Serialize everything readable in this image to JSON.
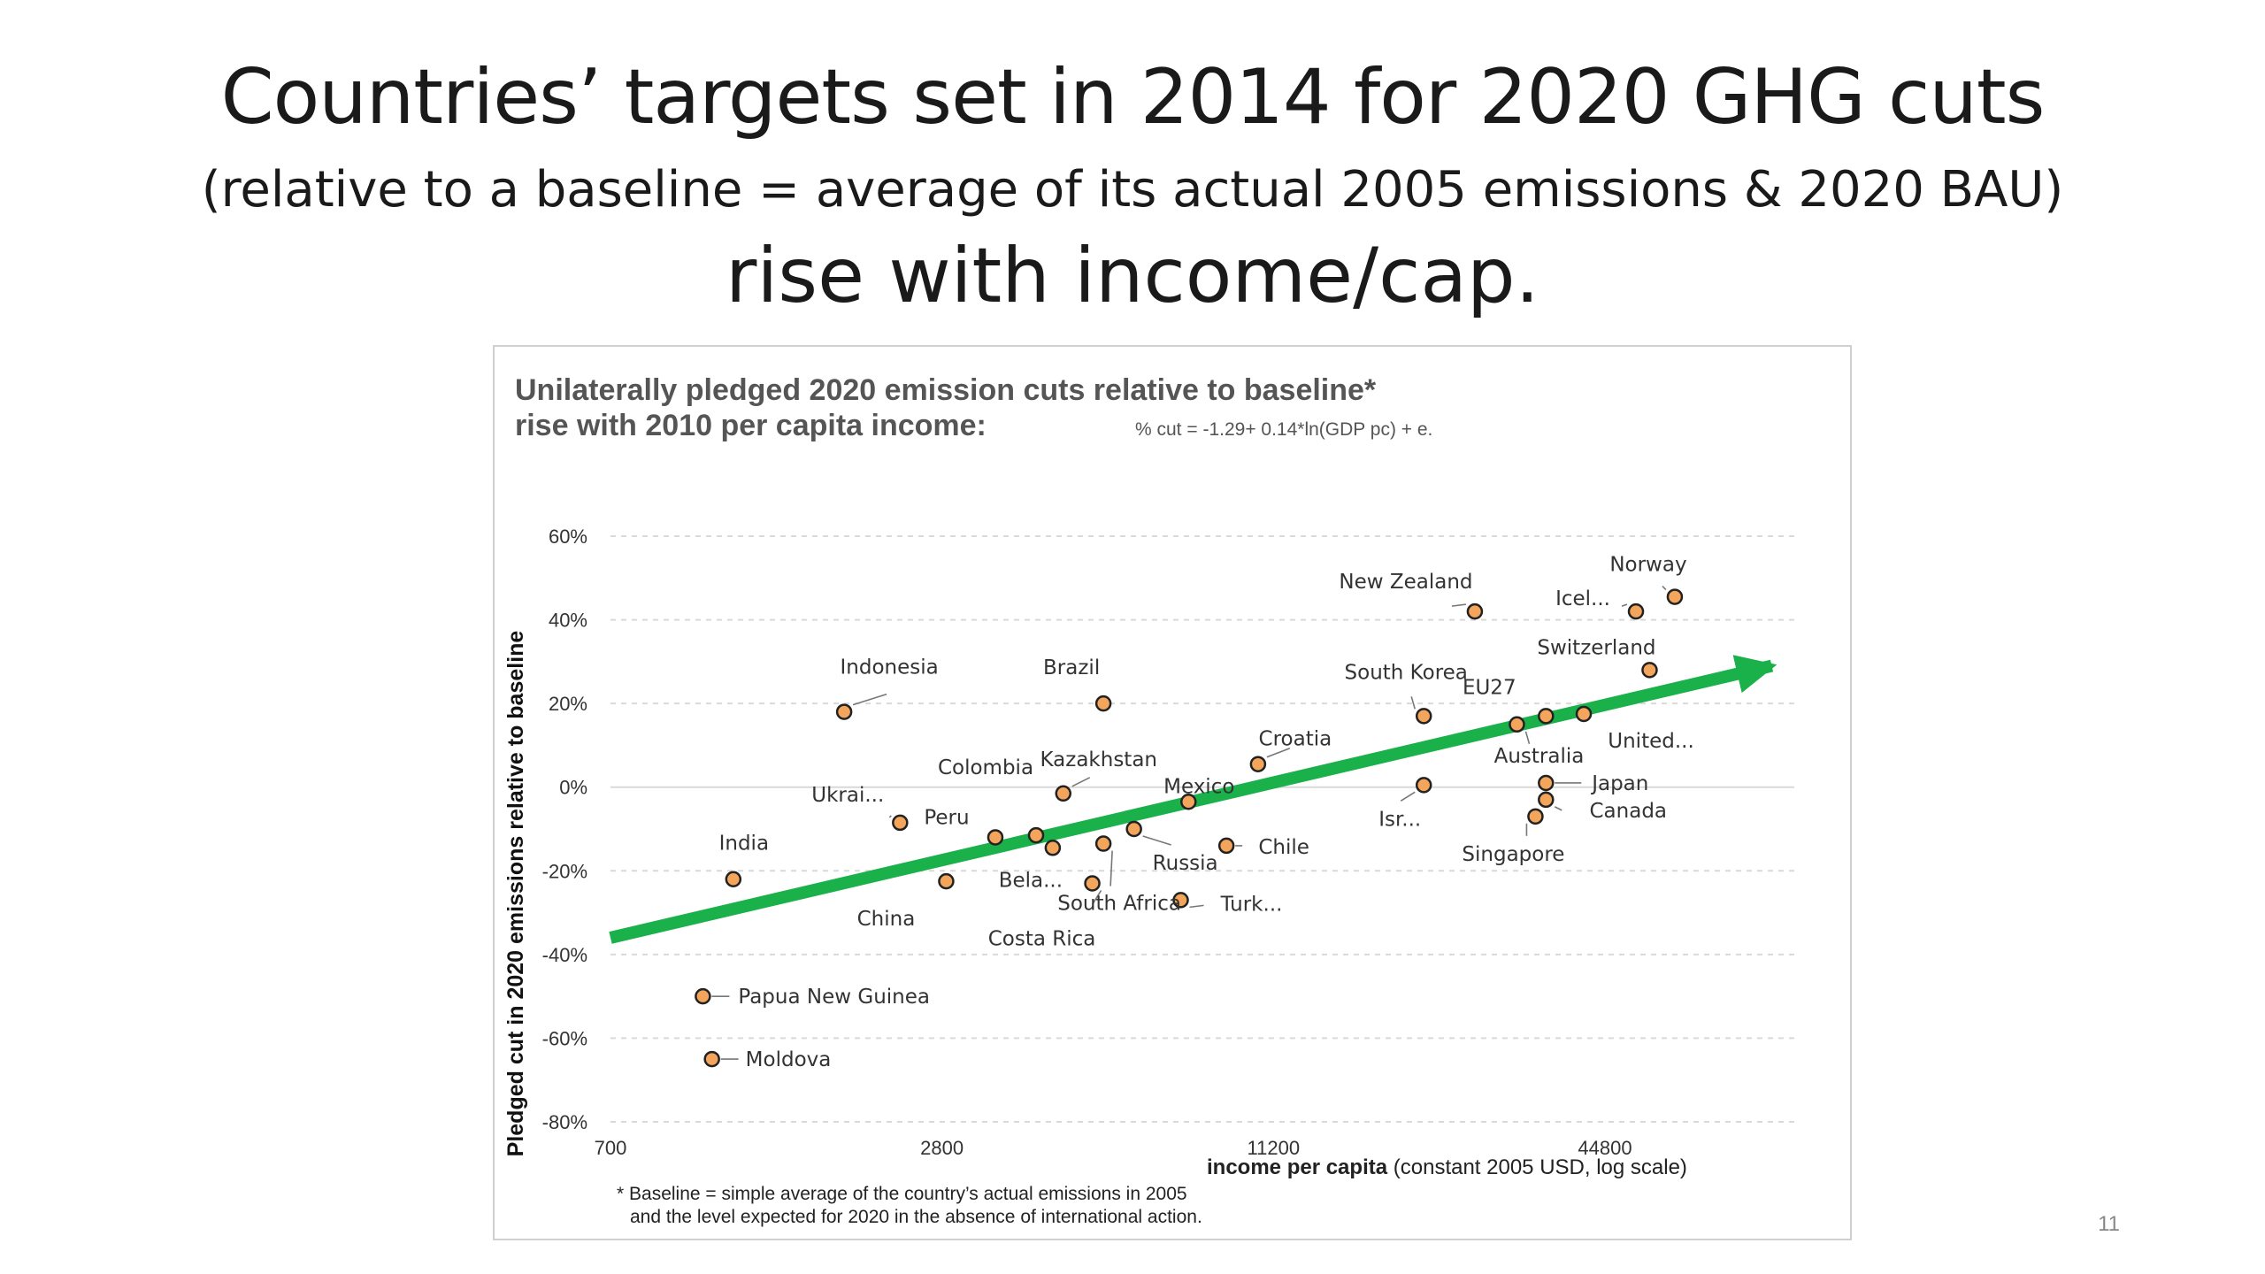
{
  "slide": {
    "title_line1": "Countries’ targets set in 2014 for 2020 GHG cuts",
    "title_line2": "(relative to a baseline = average of its actual 2005 emissions & 2020 BAU)",
    "title_line3": "rise with income/cap.",
    "slide_number": "11"
  },
  "colors": {
    "point_fill": "#f4a55c",
    "point_stroke": "#222222",
    "trend_arrow": "#1ab04a",
    "gridline": "#d9d9d9"
  },
  "chart_data": {
    "type": "scatter",
    "title_line1": "Unilaterally pledged 2020 emission cuts relative to baseline*",
    "title_line2": "rise with 2010 per capita income:",
    "formula": "% cut = -1.29+ 0.14*ln(GDP pc) + e.",
    "ylabel": "Pledged cut in 2020 emissions relative to baseline",
    "xlabel_bold": "income per capita",
    "xlabel_rest": "(constant 2005 USD, log scale)",
    "footnote_line1": "* Baseline  = simple average of the country’s actual emissions in 2005",
    "footnote_line2": "and the level expected for 2020 in the absence of international action.",
    "x_scale": "log",
    "xlim": [
      700,
      100000
    ],
    "ylim": [
      -0.8,
      0.6
    ],
    "x_ticks": [
      {
        "value": 700,
        "label": "700"
      },
      {
        "value": 2800,
        "label": "2800"
      },
      {
        "value": 11200,
        "label": "11200"
      },
      {
        "value": 44800,
        "label": "44800"
      }
    ],
    "y_ticks": [
      {
        "value": 0.6,
        "label": "60%"
      },
      {
        "value": 0.4,
        "label": "40%"
      },
      {
        "value": 0.2,
        "label": "20%"
      },
      {
        "value": 0.0,
        "label": "0%"
      },
      {
        "value": -0.2,
        "label": "-20%"
      },
      {
        "value": -0.4,
        "label": "-40%"
      },
      {
        "value": -0.6,
        "label": "-60%"
      },
      {
        "value": -0.8,
        "label": "-80%"
      }
    ],
    "gridlines": "horizontal",
    "trend_arrow": {
      "x": [
        700,
        90000
      ],
      "y": [
        -0.36,
        0.29
      ]
    },
    "points": [
      {
        "label": "India",
        "x": 1170,
        "y": -0.22
      },
      {
        "label": "Papua New Guinea",
        "x": 1030,
        "y": -0.5
      },
      {
        "label": "Moldova",
        "x": 1070,
        "y": -0.65
      },
      {
        "label": "Indonesia",
        "x": 1860,
        "y": 0.18
      },
      {
        "label": "Ukrai...",
        "x": 2350,
        "y": -0.085
      },
      {
        "label": "China",
        "x": 2850,
        "y": -0.225
      },
      {
        "label": "Peru",
        "x": 3500,
        "y": -0.12
      },
      {
        "label": "Colombia",
        "x": 4150,
        "y": -0.115
      },
      {
        "label": "Bela...",
        "x": 4450,
        "y": -0.145
      },
      {
        "label": "Kazakhstan",
        "x": 4650,
        "y": -0.015
      },
      {
        "label": "Costa Rica",
        "x": 5250,
        "y": -0.23
      },
      {
        "label": "South Africa",
        "x": 5500,
        "y": -0.135
      },
      {
        "label": "Brazil",
        "x": 5500,
        "y": 0.2
      },
      {
        "label": "Russia",
        "x": 6250,
        "y": -0.1
      },
      {
        "label": "Mexico",
        "x": 7850,
        "y": -0.035
      },
      {
        "label": "Turk...",
        "x": 7600,
        "y": -0.27
      },
      {
        "label": "Chile",
        "x": 9200,
        "y": -0.14
      },
      {
        "label": "Croatia",
        "x": 10500,
        "y": 0.055
      },
      {
        "label": "Isr...",
        "x": 21000,
        "y": 0.005
      },
      {
        "label": "South Korea",
        "x": 21000,
        "y": 0.17
      },
      {
        "label": "New Zealand",
        "x": 26000,
        "y": 0.42
      },
      {
        "label": "Australia",
        "x": 31000,
        "y": 0.15
      },
      {
        "label": "EU27",
        "x": 35000,
        "y": 0.17
      },
      {
        "label": "Singapore",
        "x": 33500,
        "y": -0.07
      },
      {
        "label": "Japan",
        "x": 35000,
        "y": 0.01
      },
      {
        "label": "Canada",
        "x": 35000,
        "y": -0.03
      },
      {
        "label": "United...",
        "x": 41000,
        "y": 0.175
      },
      {
        "label": "Switzerland",
        "x": 54000,
        "y": 0.28
      },
      {
        "label": "Icel...",
        "x": 51000,
        "y": 0.42
      },
      {
        "label": "Norway",
        "x": 60000,
        "y": 0.455
      }
    ]
  }
}
